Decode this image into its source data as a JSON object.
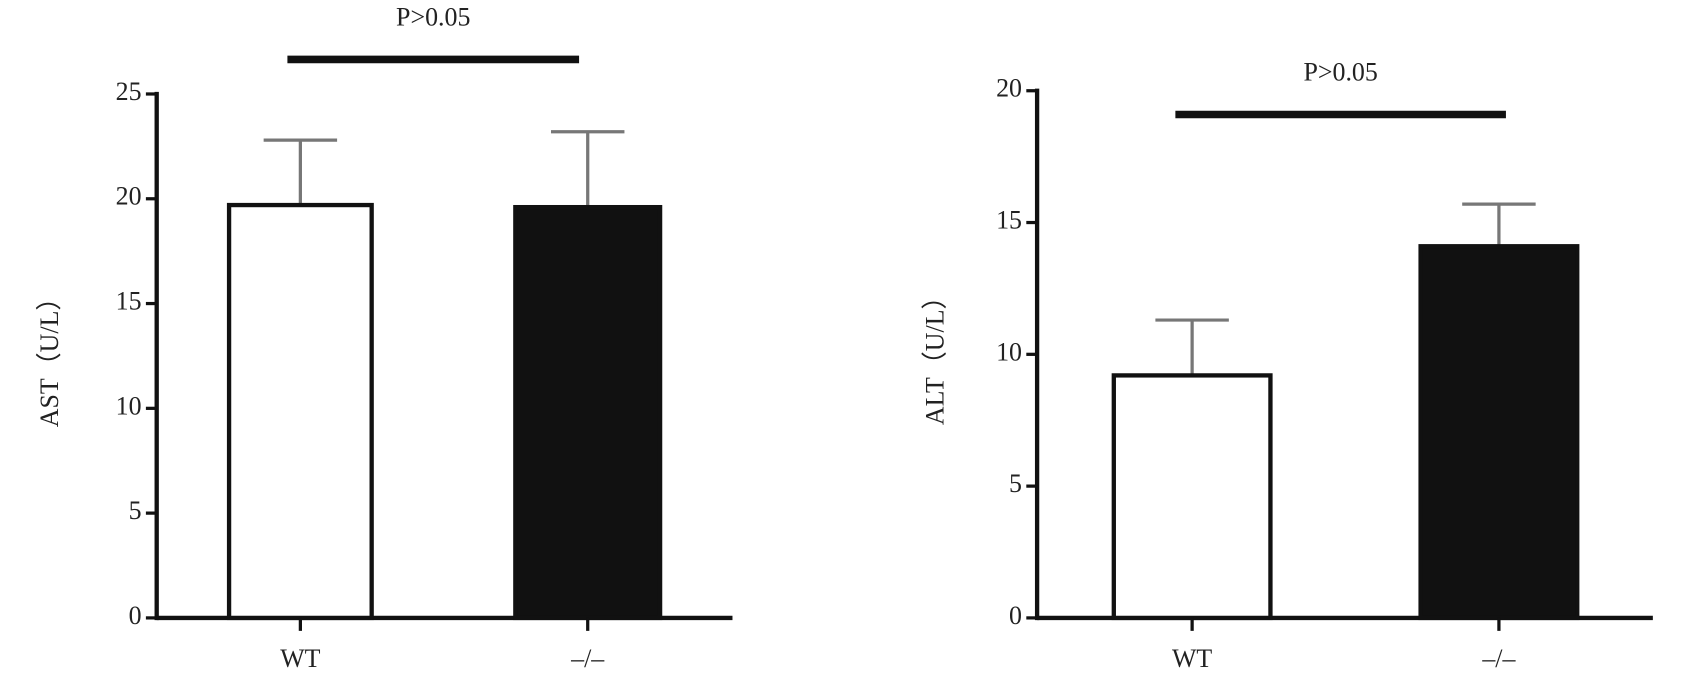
{
  "chart_data": [
    {
      "type": "bar",
      "y_label": "AST（U/L）",
      "annotation": "P>0.05",
      "categories": [
        "WT",
        "–/–"
      ],
      "values": [
        19.7,
        19.6
      ],
      "errors": [
        3.1,
        3.6
      ],
      "colors": [
        "#ffffff",
        "#111111"
      ],
      "ylim": [
        0,
        25
      ],
      "yticks": [
        0,
        5,
        10,
        15,
        20,
        25
      ]
    },
    {
      "type": "bar",
      "y_label": "ALT（U/L）",
      "annotation": "P>0.05",
      "categories": [
        "WT",
        "–/–"
      ],
      "values": [
        9.2,
        14.1
      ],
      "errors": [
        2.1,
        1.6
      ],
      "colors": [
        "#ffffff",
        "#111111"
      ],
      "ylim": [
        0,
        20
      ],
      "yticks": [
        0,
        5,
        10,
        15,
        20
      ]
    }
  ]
}
